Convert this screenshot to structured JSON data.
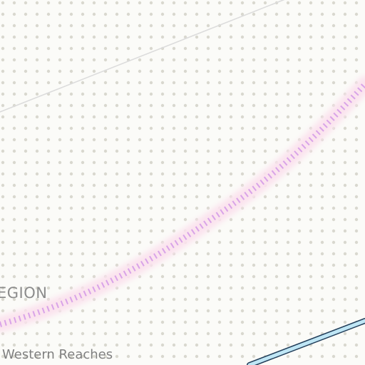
{
  "map": {
    "labels": {
      "region": "EGION",
      "subregion": "Western Reaches"
    },
    "colors": {
      "background": "#fbfbf8",
      "dots": "#d9d8cf",
      "thin_road": "#dcdcdc",
      "dashed_route": "#d9a3e8",
      "dashed_route_glow": "#fbe3ee",
      "waterway_fill": "#bfe6f5",
      "waterway_outline": "#1f3b57"
    },
    "features": [
      {
        "name": "thin-road",
        "kind": "road"
      },
      {
        "name": "dashed-route",
        "kind": "route"
      },
      {
        "name": "waterway",
        "kind": "water"
      }
    ]
  }
}
